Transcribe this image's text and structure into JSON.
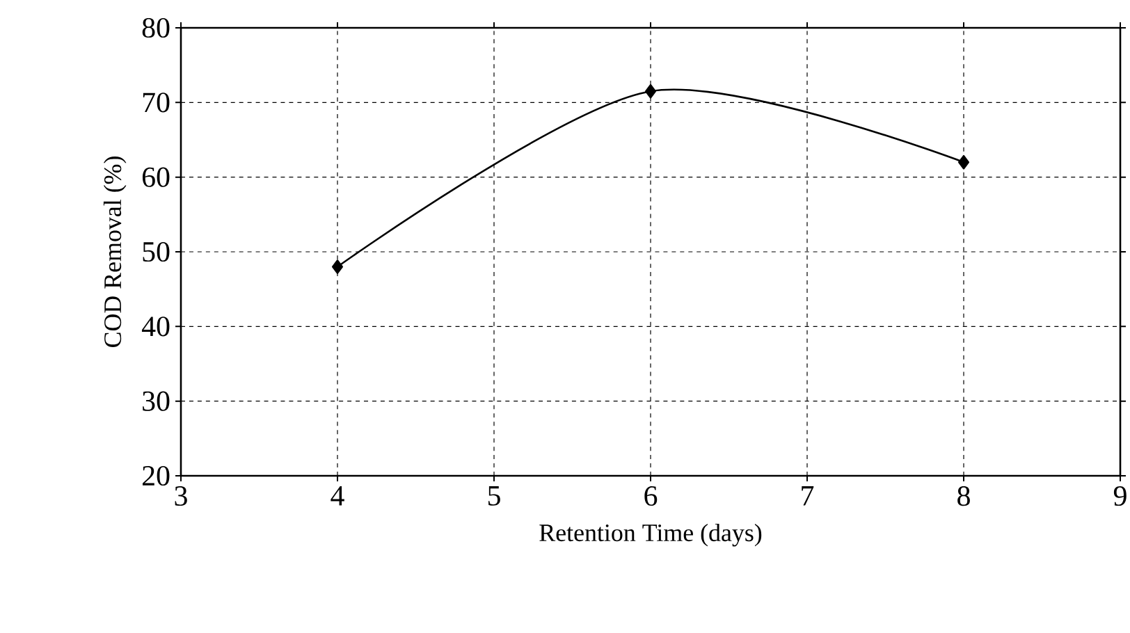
{
  "chart_data": {
    "type": "line",
    "xlabel": "Retention Time (days)",
    "ylabel": "COD Removal (%)",
    "x": [
      4,
      6,
      8
    ],
    "values": [
      48,
      71.5,
      62
    ],
    "color": "#000000",
    "xlim": [
      3,
      9
    ],
    "ylim": [
      20,
      80
    ],
    "xticks": [
      3,
      4,
      5,
      6,
      7,
      8,
      9
    ],
    "yticks": [
      20,
      30,
      40,
      50,
      60,
      70,
      80
    ],
    "grid": true,
    "marker": "diamond",
    "line_style": "solid"
  }
}
